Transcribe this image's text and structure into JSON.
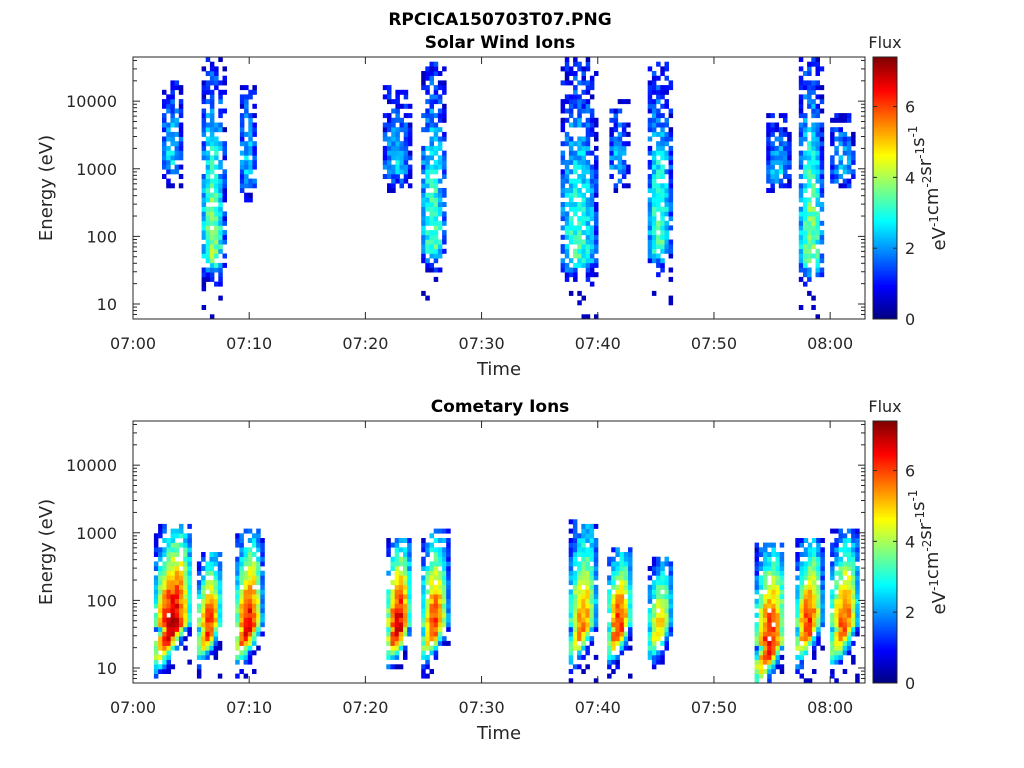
{
  "figure": {
    "title": "RPCICA150703T07.PNG"
  },
  "chart_data": [
    {
      "type": "heatmap",
      "title": "Solar Wind Ions",
      "xlabel": "Time",
      "ylabel": "Energy (eV)",
      "y_scale": "log",
      "ylim": [
        6,
        45000
      ],
      "xlim": [
        "07:00",
        "08:03"
      ],
      "x_ticks": [
        "07:00",
        "07:10",
        "07:20",
        "07:30",
        "07:40",
        "07:50",
        "08:00"
      ],
      "y_ticks": [
        "10",
        "100",
        "1000",
        "10000"
      ],
      "colorbar": {
        "label": "Flux",
        "unit": "eV-1cm-2sr-1s-1",
        "range": [
          0,
          7.4
        ],
        "ticks": [
          "0",
          "2",
          "4",
          "6"
        ]
      },
      "bursts": [
        {
          "start": "07:02.5",
          "end": "07:04.2",
          "emin": 600,
          "emax": 20000,
          "peak_flux": 2.6
        },
        {
          "start": "07:05.9",
          "end": "07:07.8",
          "emin": 6,
          "emax": 40000,
          "peak_flux": 3.8
        },
        {
          "start": "07:09.2",
          "end": "07:10.6",
          "emin": 300,
          "emax": 20000,
          "peak_flux": 2.4
        },
        {
          "start": "07:21.5",
          "end": "07:23.8",
          "emin": 500,
          "emax": 15000,
          "peak_flux": 2.4
        },
        {
          "start": "07:24.8",
          "end": "07:26.8",
          "emin": 10,
          "emax": 35000,
          "peak_flux": 3.4
        },
        {
          "start": "07:36.8",
          "end": "07:39.8",
          "emin": 6,
          "emax": 40000,
          "peak_flux": 3.2
        },
        {
          "start": "07:41.0",
          "end": "07:42.5",
          "emin": 500,
          "emax": 10000,
          "peak_flux": 2.4
        },
        {
          "start": "07:44.3",
          "end": "07:46.3",
          "emin": 10,
          "emax": 35000,
          "peak_flux": 3.3
        },
        {
          "start": "07:54.5",
          "end": "07:56.5",
          "emin": 500,
          "emax": 6000,
          "peak_flux": 2.4
        },
        {
          "start": "07:57.3",
          "end": "07:59.3",
          "emin": 6,
          "emax": 40000,
          "peak_flux": 3.8
        },
        {
          "start": "08:00.0",
          "end": "08:02.0",
          "emin": 600,
          "emax": 6000,
          "peak_flux": 2.4
        }
      ]
    },
    {
      "type": "heatmap",
      "title": "Cometary Ions",
      "xlabel": "Time",
      "ylabel": "Energy (eV)",
      "y_scale": "log",
      "ylim": [
        6,
        45000
      ],
      "xlim": [
        "07:00",
        "08:03"
      ],
      "x_ticks": [
        "07:00",
        "07:10",
        "07:20",
        "07:30",
        "07:40",
        "07:50",
        "08:00"
      ],
      "y_ticks": [
        "10",
        "100",
        "1000",
        "10000"
      ],
      "colorbar": {
        "label": "Flux",
        "unit": "eV-1cm-2sr-1s-1",
        "range": [
          0,
          7.4
        ],
        "ticks": [
          "0",
          "2",
          "4",
          "6"
        ]
      },
      "bursts": [
        {
          "start": "07:01.8",
          "end": "07:04.8",
          "emin": 8,
          "emax": 1200,
          "peak_flux": 7.0,
          "peak_energy": 40
        },
        {
          "start": "07:05.5",
          "end": "07:07.5",
          "emin": 8,
          "emax": 500,
          "peak_flux": 6.2,
          "peak_energy": 40
        },
        {
          "start": "07:08.8",
          "end": "07:11.0",
          "emin": 8,
          "emax": 1000,
          "peak_flux": 6.6,
          "peak_energy": 40
        },
        {
          "start": "07:21.8",
          "end": "07:23.8",
          "emin": 10,
          "emax": 800,
          "peak_flux": 6.8,
          "peak_energy": 40
        },
        {
          "start": "07:24.8",
          "end": "07:27.0",
          "emin": 8,
          "emax": 1100,
          "peak_flux": 6.0,
          "peak_energy": 40
        },
        {
          "start": "07:37.5",
          "end": "07:39.8",
          "emin": 6,
          "emax": 1500,
          "peak_flux": 5.5,
          "peak_energy": 40
        },
        {
          "start": "07:40.8",
          "end": "07:42.8",
          "emin": 8,
          "emax": 600,
          "peak_flux": 6.2,
          "peak_energy": 40
        },
        {
          "start": "07:44.3",
          "end": "07:46.3",
          "emin": 10,
          "emax": 400,
          "peak_flux": 5.0,
          "peak_energy": 40
        },
        {
          "start": "07:53.5",
          "end": "07:56.0",
          "emin": 6,
          "emax": 700,
          "peak_flux": 6.5,
          "peak_energy": 20
        },
        {
          "start": "07:57.0",
          "end": "07:59.2",
          "emin": 6,
          "emax": 800,
          "peak_flux": 6.2,
          "peak_energy": 40
        },
        {
          "start": "08:00.0",
          "end": "08:02.3",
          "emin": 6,
          "emax": 1000,
          "peak_flux": 6.0,
          "peak_energy": 40
        }
      ]
    }
  ]
}
